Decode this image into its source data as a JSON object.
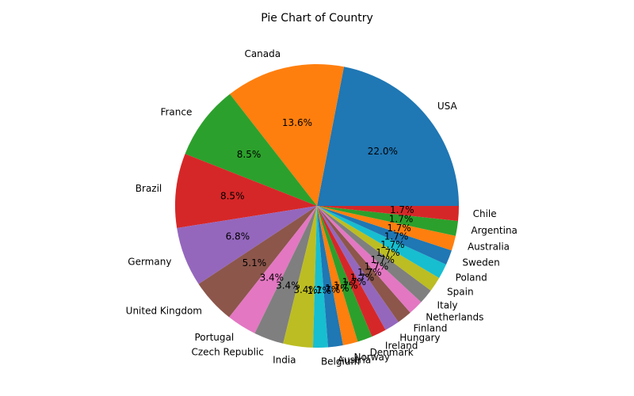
{
  "chart_data": {
    "type": "pie",
    "title": "Pie Chart of Country",
    "start_angle_deg": 0,
    "direction": "counterclockwise",
    "slices": [
      {
        "label": "USA",
        "value": 22.0,
        "pct_label": "22.0%",
        "color": "#1f77b4"
      },
      {
        "label": "Canada",
        "value": 13.6,
        "pct_label": "13.6%",
        "color": "#ff7f0e"
      },
      {
        "label": "France",
        "value": 8.5,
        "pct_label": "8.5%",
        "color": "#2ca02c"
      },
      {
        "label": "Brazil",
        "value": 8.5,
        "pct_label": "8.5%",
        "color": "#d62728"
      },
      {
        "label": "Germany",
        "value": 6.8,
        "pct_label": "6.8%",
        "color": "#9467bd"
      },
      {
        "label": "United Kingdom",
        "value": 5.1,
        "pct_label": "5.1%",
        "color": "#8c564b"
      },
      {
        "label": "Portugal",
        "value": 3.4,
        "pct_label": "3.4%",
        "color": "#e377c2"
      },
      {
        "label": "Czech Republic",
        "value": 3.4,
        "pct_label": "3.4%",
        "color": "#7f7f7f"
      },
      {
        "label": "India",
        "value": 3.4,
        "pct_label": "3.4%",
        "color": "#bcbd22"
      },
      {
        "label": "Belgium",
        "value": 1.7,
        "pct_label": "1.7%",
        "color": "#17becf"
      },
      {
        "label": "Austria",
        "value": 1.7,
        "pct_label": "1.7%",
        "color": "#1f77b4"
      },
      {
        "label": "Norway",
        "value": 1.7,
        "pct_label": "1.7%",
        "color": "#ff7f0e"
      },
      {
        "label": "Denmark",
        "value": 1.7,
        "pct_label": "1.7%",
        "color": "#2ca02c"
      },
      {
        "label": "Ireland",
        "value": 1.7,
        "pct_label": "1.7%",
        "color": "#d62728"
      },
      {
        "label": "Hungary",
        "value": 1.7,
        "pct_label": "1.7%",
        "color": "#9467bd"
      },
      {
        "label": "Finland",
        "value": 1.7,
        "pct_label": "1.7%",
        "color": "#8c564b"
      },
      {
        "label": "Netherlands",
        "value": 1.7,
        "pct_label": "1.7%",
        "color": "#e377c2"
      },
      {
        "label": "Italy",
        "value": 1.7,
        "pct_label": "1.7%",
        "color": "#7f7f7f"
      },
      {
        "label": "Spain",
        "value": 1.7,
        "pct_label": "1.7%",
        "color": "#bcbd22"
      },
      {
        "label": "Poland",
        "value": 1.7,
        "pct_label": "1.7%",
        "color": "#17becf"
      },
      {
        "label": "Sweden",
        "value": 1.7,
        "pct_label": "1.7%",
        "color": "#1f77b4"
      },
      {
        "label": "Australia",
        "value": 1.7,
        "pct_label": "1.7%",
        "color": "#ff7f0e"
      },
      {
        "label": "Argentina",
        "value": 1.7,
        "pct_label": "1.7%",
        "color": "#2ca02c"
      },
      {
        "label": "Chile",
        "value": 1.7,
        "pct_label": "1.7%",
        "color": "#d62728"
      }
    ]
  }
}
